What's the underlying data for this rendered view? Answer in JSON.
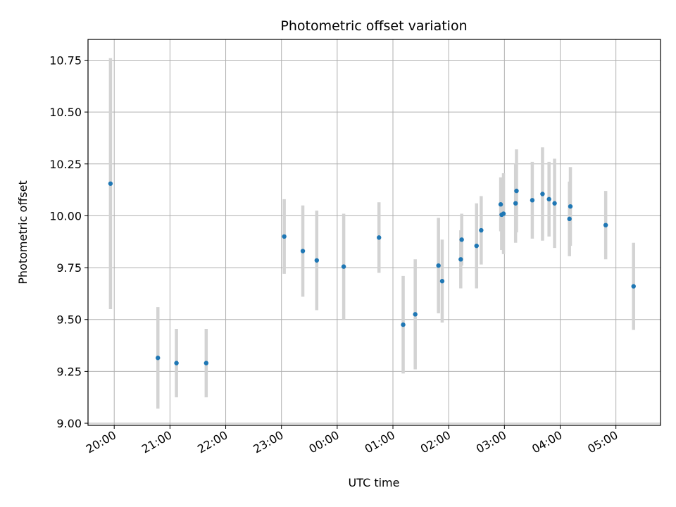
{
  "chart_data": {
    "type": "scatter",
    "title": "Photometric offset variation",
    "xlabel": "UTC time",
    "ylabel": "Photometric offset",
    "x_ticks": [
      "20:00",
      "21:00",
      "22:00",
      "23:00",
      "00:00",
      "01:00",
      "02:00",
      "03:00",
      "04:00",
      "05:00"
    ],
    "x_tick_hours": [
      20,
      21,
      22,
      23,
      24,
      25,
      26,
      27,
      28,
      29
    ],
    "xlim_hours": [
      19.53,
      29.8
    ],
    "y_ticks": [
      "9.00",
      "9.25",
      "9.50",
      "9.75",
      "10.00",
      "10.25",
      "10.50",
      "10.75"
    ],
    "y_tick_values": [
      9.0,
      9.25,
      9.5,
      9.75,
      10.0,
      10.25,
      10.5,
      10.75
    ],
    "ylim": [
      8.99,
      10.85
    ],
    "grid": true,
    "colors": {
      "marker": "#1f77b4",
      "errorbar": "#d3d3d3",
      "grid": "#b0b0b0"
    },
    "points": [
      {
        "time": "19:56",
        "y": 10.155,
        "err": 0.605
      },
      {
        "time": "20:47",
        "y": 9.315,
        "err": 0.245
      },
      {
        "time": "21:07",
        "y": 9.29,
        "err": 0.165
      },
      {
        "time": "21:39",
        "y": 9.29,
        "err": 0.165
      },
      {
        "time": "23:03",
        "y": 9.9,
        "err": 0.18
      },
      {
        "time": "23:23",
        "y": 9.83,
        "err": 0.22
      },
      {
        "time": "23:38",
        "y": 9.785,
        "err": 0.24
      },
      {
        "time": "00:07",
        "y": 9.755,
        "err": 0.255
      },
      {
        "time": "00:45",
        "y": 9.895,
        "err": 0.17
      },
      {
        "time": "01:11",
        "y": 9.475,
        "err": 0.235
      },
      {
        "time": "01:24",
        "y": 9.525,
        "err": 0.265
      },
      {
        "time": "01:49",
        "y": 9.76,
        "err": 0.23
      },
      {
        "time": "01:53",
        "y": 9.685,
        "err": 0.2
      },
      {
        "time": "02:13",
        "y": 9.79,
        "err": 0.14
      },
      {
        "time": "02:14",
        "y": 9.885,
        "err": 0.125
      },
      {
        "time": "02:30",
        "y": 9.855,
        "err": 0.205
      },
      {
        "time": "02:35",
        "y": 9.93,
        "err": 0.165
      },
      {
        "time": "02:56",
        "y": 10.055,
        "err": 0.13
      },
      {
        "time": "02:57",
        "y": 10.005,
        "err": 0.17
      },
      {
        "time": "02:59",
        "y": 10.01,
        "err": 0.195
      },
      {
        "time": "03:12",
        "y": 10.06,
        "err": 0.19
      },
      {
        "time": "03:13",
        "y": 10.12,
        "err": 0.2
      },
      {
        "time": "03:30",
        "y": 10.075,
        "err": 0.185
      },
      {
        "time": "03:41",
        "y": 10.105,
        "err": 0.225
      },
      {
        "time": "03:48",
        "y": 10.08,
        "err": 0.18
      },
      {
        "time": "03:54",
        "y": 10.06,
        "err": 0.215
      },
      {
        "time": "04:10",
        "y": 9.985,
        "err": 0.18
      },
      {
        "time": "04:11",
        "y": 10.045,
        "err": 0.19
      },
      {
        "time": "04:49",
        "y": 9.955,
        "err": 0.165
      },
      {
        "time": "05:19",
        "y": 9.66,
        "err": 0.21
      }
    ]
  }
}
